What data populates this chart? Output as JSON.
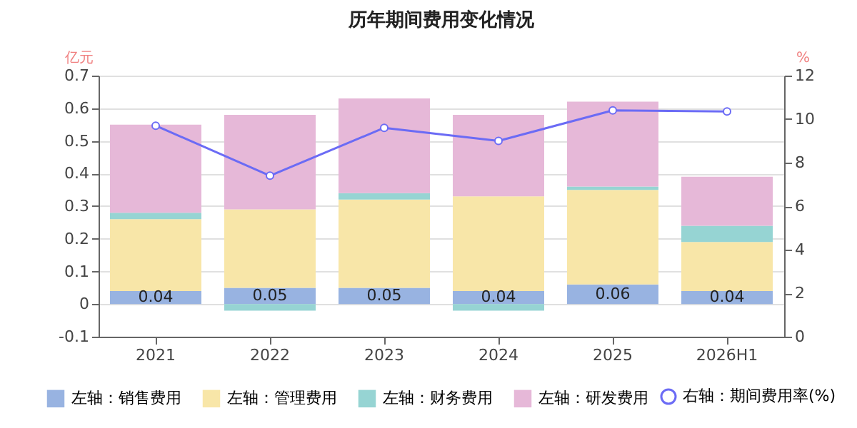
{
  "chart_data": {
    "type": "bar",
    "title": "历年期间费用变化情况",
    "ylabel": "亿元",
    "y2label": "%",
    "categories": [
      "2021",
      "2022",
      "2023",
      "2024",
      "2025",
      "2026H1"
    ],
    "stacked": true,
    "series": [
      {
        "name": "左轴：销售费用",
        "color": "#98b3e1",
        "values": [
          0.04,
          0.05,
          0.05,
          0.04,
          0.06,
          0.04
        ],
        "value_labels": [
          "0.04",
          "0.05",
          "0.05",
          "0.04",
          "0.06",
          "0.04"
        ]
      },
      {
        "name": "左轴：管理费用",
        "color": "#f8e6a8",
        "values": [
          0.22,
          0.24,
          0.27,
          0.29,
          0.29,
          0.15
        ]
      },
      {
        "name": "左轴：财务费用",
        "color": "#96d4d3",
        "values": [
          0.02,
          -0.02,
          0.02,
          -0.02,
          0.01,
          0.05
        ]
      },
      {
        "name": "左轴：研发费用",
        "color": "#e6b8d8",
        "values": [
          0.27,
          0.29,
          0.29,
          0.25,
          0.26,
          0.15
        ]
      },
      {
        "name": "右轴：期间费用率(%)",
        "type": "line",
        "axis": "y2",
        "color": "#6b6bf5",
        "values": [
          9.7,
          7.4,
          9.6,
          9.0,
          10.4,
          10.35
        ]
      }
    ],
    "ylim": [
      -0.1,
      0.7
    ],
    "yticks": [
      -0.1,
      0,
      0.1,
      0.2,
      0.3,
      0.4,
      0.5,
      0.6,
      0.7
    ],
    "y2lim": [
      0,
      12
    ],
    "y2ticks": [
      0,
      2,
      4,
      6,
      8,
      10,
      12
    ],
    "grid": "y",
    "legend": "bottom",
    "marker": "circle",
    "line_style": "solid"
  }
}
